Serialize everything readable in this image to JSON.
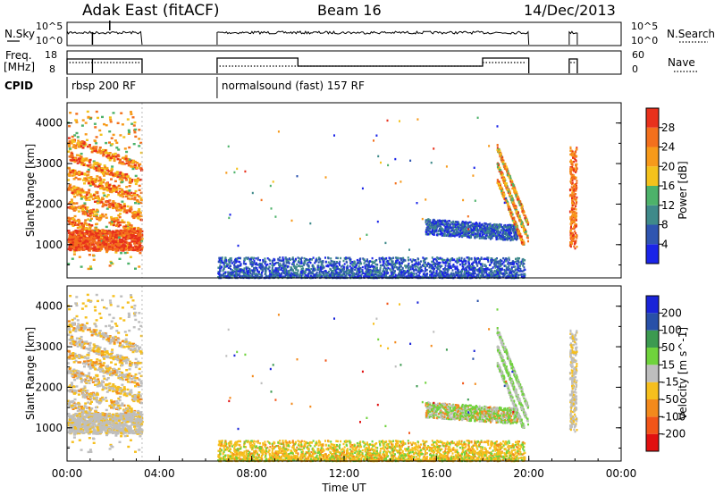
{
  "header": {
    "station": "Adak East (fitACF)",
    "beam": "Beam 16",
    "date": "14/Dec/2013"
  },
  "panel_labels": {
    "nsky": "N.Sky",
    "nsearch": "N.Search",
    "freq_line1": "Freq.",
    "freq_line2": "[MHz]",
    "nave": "Nave",
    "cpid": "CPID"
  },
  "noise_ticks": {
    "left_top": "10^5",
    "left_bottom": "10^0",
    "right_top": "10^5",
    "right_bottom": "10^0"
  },
  "freq_ticks": {
    "left_top": "18",
    "left_bottom": "8",
    "right_top": "60",
    "right_bottom": "0"
  },
  "cpid_segments": [
    {
      "label": "rbsp 200 RF",
      "start_h": 0.0,
      "end_h": 3.25
    },
    {
      "label": "normalsound (fast) 157 RF",
      "start_h": 6.5,
      "end_h": 20.0
    }
  ],
  "data_windows_h": [
    [
      0.0,
      3.25
    ],
    [
      6.5,
      20.0
    ],
    [
      21.75,
      22.1
    ]
  ],
  "colors": {
    "missing": "#ffffff",
    "ground_scatter": "#bebebe",
    "axis": "#000000"
  },
  "chart_data": [
    {
      "type": "heatmap",
      "title": "",
      "xlabel": "",
      "ylabel": "Slant Range [km]",
      "xlim": [
        0,
        24
      ],
      "ylim": [
        180,
        4500
      ],
      "x_ticks": [],
      "y_ticks": [
        "1000",
        "2000",
        "3000",
        "4000"
      ],
      "colorbar": {
        "label": "Power [dB]",
        "levels": [
          0,
          4,
          8,
          12,
          16,
          20,
          24,
          28,
          32
        ],
        "tick_labels": [
          "4",
          "8",
          "12",
          "16",
          "20",
          "24",
          "28"
        ],
        "colors": [
          "#1a24e8",
          "#2f55b0",
          "#3f8a8a",
          "#4db26a",
          "#f4c21c",
          "#f79a1a",
          "#f3701d",
          "#e8311c"
        ]
      }
    },
    {
      "type": "heatmap",
      "title": "",
      "xlabel": "Time UT",
      "ylabel": "Slant Range [km]",
      "xlim": [
        0,
        24
      ],
      "ylim": [
        180,
        4500
      ],
      "x_ticks": [
        "00:00",
        "04:00",
        "08:00",
        "12:00",
        "16:00",
        "20:00",
        "00:00"
      ],
      "y_ticks": [
        "1000",
        "2000",
        "3000",
        "4000"
      ],
      "colorbar": {
        "label": "Velocity [m s^-1]",
        "levels": [
          -250,
          -200,
          -100,
          -50,
          -15,
          15,
          50,
          100,
          200,
          250
        ],
        "tick_labels": [
          "-200",
          "-100",
          "-50",
          "-15",
          "15",
          "50",
          "100",
          "200"
        ],
        "colors": [
          "#e11010",
          "#f25518",
          "#f38a1c",
          "#f6bf1d",
          "#bebebe",
          "#6fd33c",
          "#3c9a50",
          "#2850a8",
          "#1a24d8"
        ]
      }
    }
  ]
}
